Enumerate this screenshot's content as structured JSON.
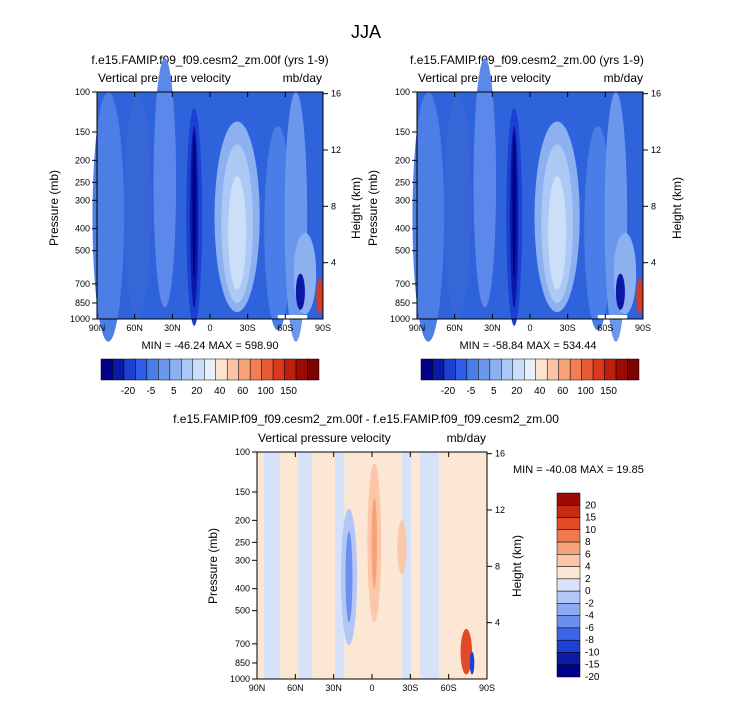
{
  "figure": {
    "title": "JJA"
  },
  "chart_data": [
    {
      "type": "heatmap",
      "panel": "top-left",
      "title": "f.e15.FAMIP.f09_f09.cesm2_zm.00f (yrs 1-9)",
      "left_string": "Vertical pressure velocity",
      "right_string": "mb/day",
      "xlabel": "",
      "ylabel": "Pressure (mb)",
      "y2label": "Height (km)",
      "x_ticks": [
        "90N",
        "60N",
        "30N",
        "0",
        "30S",
        "60S",
        "90S"
      ],
      "y_ticks": [
        "100",
        "150",
        "200",
        "250",
        "300",
        "400",
        "500",
        "700",
        "850",
        "1000"
      ],
      "y2_ticks": [
        "16",
        "12",
        "8",
        "4"
      ],
      "stats": "MIN = -46.24   MAX = 598.90",
      "colorbar_labels": [
        "-20",
        "-5",
        "5",
        "20",
        "40",
        "60",
        "100",
        "150"
      ],
      "palette": "full"
    },
    {
      "type": "heatmap",
      "panel": "top-right",
      "title": "f.e15.FAMIP.f09_f09.cesm2_zm.00 (yrs 1-9)",
      "left_string": "Vertical pressure velocity",
      "right_string": "mb/day",
      "xlabel": "",
      "ylabel": "Pressure (mb)",
      "y2label": "Height (km)",
      "x_ticks": [
        "90N",
        "60N",
        "30N",
        "0",
        "30S",
        "60S",
        "90S"
      ],
      "y_ticks": [
        "100",
        "150",
        "200",
        "250",
        "300",
        "400",
        "500",
        "700",
        "850",
        "1000"
      ],
      "y2_ticks": [
        "16",
        "12",
        "8",
        "4"
      ],
      "stats": "MIN = -58.84   MAX = 534.44",
      "colorbar_labels": [
        "-20",
        "-5",
        "5",
        "20",
        "40",
        "60",
        "100",
        "150"
      ],
      "palette": "full"
    },
    {
      "type": "heatmap",
      "panel": "bottom",
      "title": "f.e15.FAMIP.f09_f09.cesm2_zm.00f - f.e15.FAMIP.f09_f09.cesm2_zm.00",
      "left_string": "Vertical pressure velocity",
      "right_string": "mb/day",
      "xlabel": "",
      "ylabel": "Pressure (mb)",
      "y2label": "Height (km)",
      "x_ticks": [
        "90N",
        "60N",
        "30N",
        "0",
        "30S",
        "60S",
        "90S"
      ],
      "y_ticks": [
        "100",
        "150",
        "200",
        "250",
        "300",
        "400",
        "500",
        "700",
        "850",
        "1000"
      ],
      "y2_ticks": [
        "16",
        "12",
        "8",
        "4"
      ],
      "stats": "MIN = -40.08   MAX =  19.85",
      "colorbar_labels": [
        "20",
        "15",
        "10",
        "8",
        "6",
        "4",
        "2",
        "0",
        "-2",
        "-4",
        "-6",
        "-8",
        "-10",
        "-15",
        "-20"
      ],
      "palette": "diff"
    }
  ]
}
